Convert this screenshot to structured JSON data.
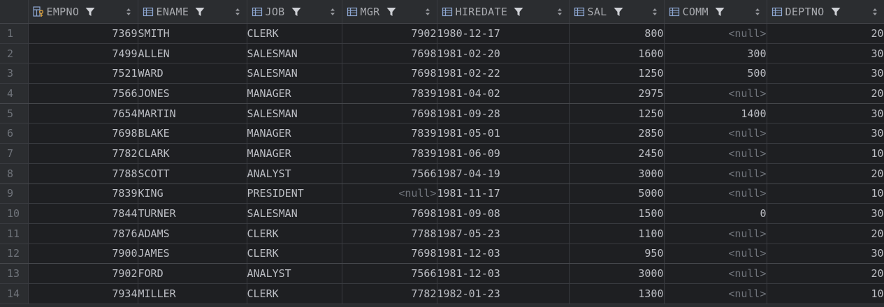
{
  "table": {
    "columns": [
      {
        "label": "EMPNO",
        "icon": "primary-key-column-icon",
        "align": "num"
      },
      {
        "label": "ENAME",
        "icon": "column-icon",
        "align": "txt"
      },
      {
        "label": "JOB",
        "icon": "column-icon",
        "align": "txt"
      },
      {
        "label": "MGR",
        "icon": "column-icon",
        "align": "num"
      },
      {
        "label": "HIREDATE",
        "icon": "column-icon",
        "align": "txt"
      },
      {
        "label": "SAL",
        "icon": "column-icon",
        "align": "num"
      },
      {
        "label": "COMM",
        "icon": "column-icon",
        "align": "num"
      },
      {
        "label": "DEPTNO",
        "icon": "column-icon",
        "align": "num"
      }
    ],
    "rows": [
      {
        "n": "1",
        "cells": [
          "7369",
          "SMITH",
          "CLERK",
          "7902",
          "1980-12-17",
          "800",
          "<null>",
          "20"
        ]
      },
      {
        "n": "2",
        "cells": [
          "7499",
          "ALLEN",
          "SALESMAN",
          "7698",
          "1981-02-20",
          "1600",
          "300",
          "30"
        ]
      },
      {
        "n": "3",
        "cells": [
          "7521",
          "WARD",
          "SALESMAN",
          "7698",
          "1981-02-22",
          "1250",
          "500",
          "30"
        ]
      },
      {
        "n": "4",
        "cells": [
          "7566",
          "JONES",
          "MANAGER",
          "7839",
          "1981-04-02",
          "2975",
          "<null>",
          "20"
        ]
      },
      {
        "n": "5",
        "cells": [
          "7654",
          "MARTIN",
          "SALESMAN",
          "7698",
          "1981-09-28",
          "1250",
          "1400",
          "30"
        ]
      },
      {
        "n": "6",
        "cells": [
          "7698",
          "BLAKE",
          "MANAGER",
          "7839",
          "1981-05-01",
          "2850",
          "<null>",
          "30"
        ]
      },
      {
        "n": "7",
        "cells": [
          "7782",
          "CLARK",
          "MANAGER",
          "7839",
          "1981-06-09",
          "2450",
          "<null>",
          "10"
        ]
      },
      {
        "n": "8",
        "cells": [
          "7788",
          "SCOTT",
          "ANALYST",
          "7566",
          "1987-04-19",
          "3000",
          "<null>",
          "20"
        ]
      },
      {
        "n": "9",
        "cells": [
          "7839",
          "KING",
          "PRESIDENT",
          "<null>",
          "1981-11-17",
          "5000",
          "<null>",
          "10"
        ]
      },
      {
        "n": "10",
        "cells": [
          "7844",
          "TURNER",
          "SALESMAN",
          "7698",
          "1981-09-08",
          "1500",
          "0",
          "30"
        ]
      },
      {
        "n": "11",
        "cells": [
          "7876",
          "ADAMS",
          "CLERK",
          "7788",
          "1987-05-23",
          "1100",
          "<null>",
          "20"
        ]
      },
      {
        "n": "12",
        "cells": [
          "7900",
          "JAMES",
          "CLERK",
          "7698",
          "1981-12-03",
          "950",
          "<null>",
          "30"
        ]
      },
      {
        "n": "13",
        "cells": [
          "7902",
          "FORD",
          "ANALYST",
          "7566",
          "1981-12-03",
          "3000",
          "<null>",
          "20"
        ]
      },
      {
        "n": "14",
        "cells": [
          "7934",
          "MILLER",
          "CLERK",
          "7782",
          "1982-01-23",
          "1300",
          "<null>",
          "10"
        ]
      }
    ]
  },
  "colors": {
    "background": "#1e1f22",
    "header": "#2b2d30",
    "text": "#bcbec4",
    "muted": "#6f737a",
    "key_icon": "#e2a33c",
    "column_icon": "#8da6d1"
  }
}
